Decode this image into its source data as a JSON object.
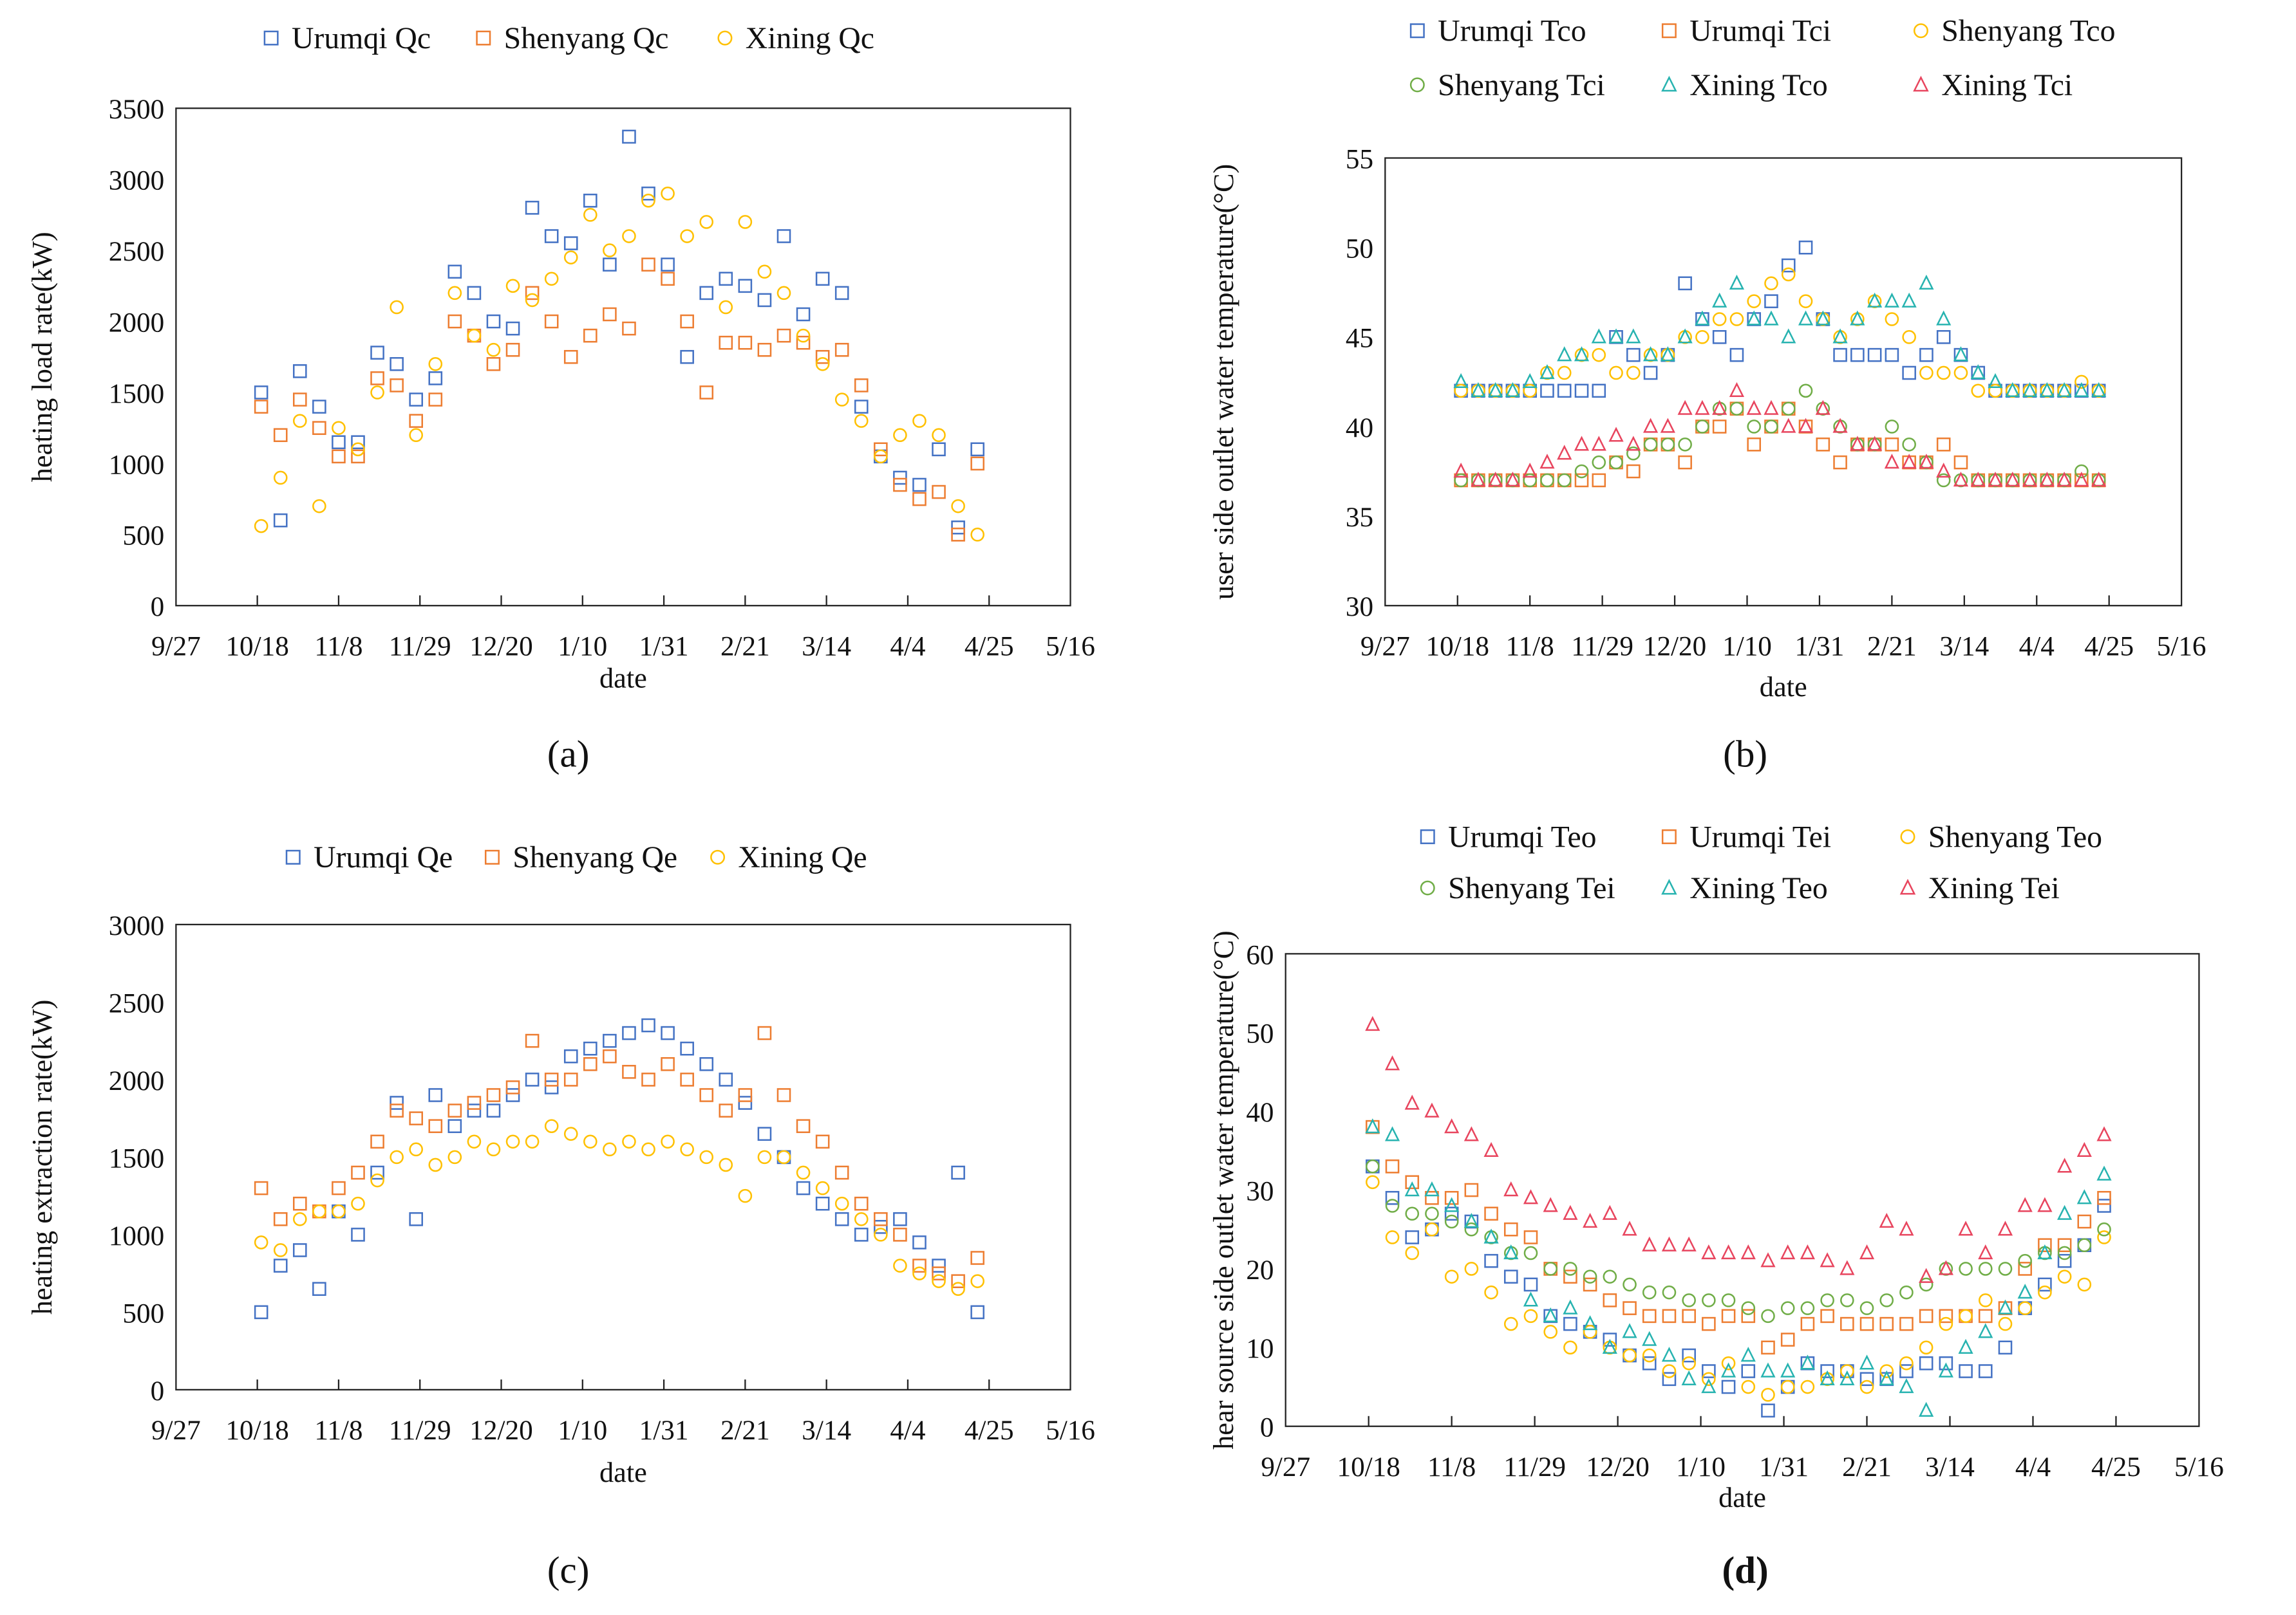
{
  "colors": {
    "blue": "#4472C4",
    "orange": "#ED7D31",
    "yellow": "#FFC000",
    "green": "#70AD47",
    "teal": "#27B3B0",
    "red": "#E8455E"
  },
  "chart_data": [
    {
      "panel_label": "(a)",
      "type": "scatter",
      "xlabel": "date",
      "ylabel": "heating load rate(kW)",
      "ylim": [
        0,
        3500
      ],
      "yticks": [
        0,
        500,
        1000,
        1500,
        2000,
        2500,
        3000,
        3500
      ],
      "xlim_days_from_9_27": [
        0,
        231
      ],
      "xtick_labels": [
        "9/27",
        "10/18",
        "11/8",
        "11/29",
        "12/20",
        "1/10",
        "1/31",
        "2/21",
        "3/14",
        "4/4",
        "4/25",
        "5/16"
      ],
      "x_days": [
        22,
        27,
        32,
        37,
        42,
        47,
        52,
        57,
        62,
        67,
        72,
        77,
        82,
        87,
        92,
        97,
        102,
        107,
        112,
        117,
        122,
        127,
        132,
        137,
        142,
        147,
        152,
        157,
        162,
        167,
        172,
        177,
        182,
        187,
        192,
        197,
        202,
        207
      ],
      "series": [
        {
          "name": "Urumqi Qc",
          "marker": "square",
          "color": "#4472C4",
          "values": [
            1500,
            600,
            1650,
            1400,
            1150,
            1150,
            1780,
            1700,
            1450,
            1600,
            2350,
            2200,
            2000,
            1950,
            2800,
            2600,
            2550,
            2850,
            2400,
            3300,
            2900,
            2400,
            1750,
            2200,
            2300,
            2250,
            2150,
            2600,
            2050,
            2300,
            2200,
            1400,
            1050,
            900,
            850,
            1100,
            550,
            1100
          ]
        },
        {
          "name": "Shenyang Qc",
          "marker": "square",
          "color": "#ED7D31",
          "values": [
            1400,
            1200,
            1450,
            1250,
            1050,
            1050,
            1600,
            1550,
            1300,
            1450,
            2000,
            1900,
            1700,
            1800,
            2200,
            2000,
            1750,
            1900,
            2050,
            1950,
            2400,
            2300,
            2000,
            1500,
            1850,
            1850,
            1800,
            1900,
            1850,
            1750,
            1800,
            1550,
            1100,
            850,
            750,
            800,
            500,
            1000
          ]
        },
        {
          "name": "Xining Qc",
          "marker": "circle",
          "color": "#FFC000",
          "values": [
            560,
            900,
            1300,
            700,
            1250,
            1100,
            1500,
            2100,
            1200,
            1700,
            2200,
            1900,
            1800,
            2250,
            2150,
            2300,
            2450,
            2750,
            2500,
            2600,
            2850,
            2900,
            2600,
            2700,
            2100,
            2700,
            2350,
            2200,
            1900,
            1700,
            1450,
            1300,
            1050,
            1200,
            1300,
            1200,
            700,
            500
          ]
        }
      ]
    },
    {
      "panel_label": "(b)",
      "type": "scatter",
      "xlabel": "date",
      "ylabel": "user side outlet water temperature(°C)",
      "ylim": [
        30,
        55
      ],
      "yticks": [
        30,
        35,
        40,
        45,
        50,
        55
      ],
      "xlim_days_from_9_27": [
        0,
        231
      ],
      "xtick_labels": [
        "9/27",
        "10/18",
        "11/8",
        "11/29",
        "12/20",
        "1/10",
        "1/31",
        "2/21",
        "3/14",
        "4/4",
        "4/25",
        "5/16"
      ],
      "x_days": [
        22,
        27,
        32,
        37,
        42,
        47,
        52,
        57,
        62,
        67,
        72,
        77,
        82,
        87,
        92,
        97,
        102,
        107,
        112,
        117,
        122,
        127,
        132,
        137,
        142,
        147,
        152,
        157,
        162,
        167,
        172,
        177,
        182,
        187,
        192,
        197,
        202,
        207
      ],
      "series": [
        {
          "name": "Urumqi Tco",
          "marker": "square",
          "color": "#4472C4",
          "values": [
            42,
            42,
            42,
            42,
            42,
            42,
            42,
            42,
            42,
            45,
            44,
            43,
            44,
            48,
            46,
            45,
            44,
            46,
            47,
            49,
            50,
            46,
            44,
            44,
            44,
            44,
            43,
            44,
            45,
            44,
            43,
            42,
            42,
            42,
            42,
            42,
            42,
            42
          ]
        },
        {
          "name": "Urumqi Tci",
          "marker": "square",
          "color": "#ED7D31",
          "values": [
            37,
            37,
            37,
            37,
            37,
            37,
            37,
            37,
            37,
            38,
            37.5,
            39,
            39,
            38,
            40,
            40,
            41,
            39,
            40,
            41,
            40,
            39,
            38,
            39,
            39,
            39,
            38,
            38,
            39,
            38,
            37,
            37,
            37,
            37,
            37,
            37,
            37,
            37
          ]
        },
        {
          "name": "Shenyang Tco",
          "marker": "circle",
          "color": "#FFC000",
          "values": [
            42,
            42,
            42,
            42,
            42,
            43,
            43,
            44,
            44,
            43,
            43,
            44,
            44,
            45,
            45,
            46,
            46,
            47,
            48,
            48.5,
            47,
            46,
            45,
            46,
            47,
            46,
            45,
            43,
            43,
            43,
            42,
            42,
            42,
            42,
            42,
            42,
            42.5,
            42
          ]
        },
        {
          "name": "Shenyang Tci",
          "marker": "circle",
          "color": "#70AD47",
          "values": [
            37,
            37,
            37,
            37,
            37,
            37,
            37,
            37.5,
            38,
            38,
            38.5,
            39,
            39,
            39,
            40,
            41,
            41,
            40,
            40,
            41,
            42,
            41,
            40,
            39,
            39,
            40,
            39,
            38,
            37,
            37,
            37,
            37,
            37,
            37,
            37,
            37,
            37.5,
            37
          ]
        },
        {
          "name": "Xining Tco",
          "marker": "triangle",
          "color": "#27B3B0",
          "values": [
            42.5,
            42,
            42,
            42,
            42.5,
            43,
            44,
            44,
            45,
            45,
            45,
            44,
            44,
            45,
            46,
            47,
            48,
            46,
            46,
            45,
            46,
            46,
            45,
            46,
            47,
            47,
            47,
            48,
            46,
            44,
            43,
            42.5,
            42,
            42,
            42,
            42,
            42,
            42
          ]
        },
        {
          "name": "Xining Tci",
          "marker": "triangle",
          "color": "#E8455E",
          "values": [
            37.5,
            37,
            37,
            37,
            37.5,
            38,
            38.5,
            39,
            39,
            39.5,
            39,
            40,
            40,
            41,
            41,
            41,
            42,
            41,
            41,
            40,
            40,
            41,
            40,
            39,
            39,
            38,
            38,
            38,
            37.5,
            37,
            37,
            37,
            37,
            37,
            37,
            37,
            37,
            37
          ]
        }
      ]
    },
    {
      "panel_label": "(c)",
      "type": "scatter",
      "xlabel": "date",
      "ylabel": "heating extraction rate(kW)",
      "ylim": [
        0,
        3000
      ],
      "yticks": [
        0,
        500,
        1000,
        1500,
        2000,
        2500,
        3000
      ],
      "xlim_days_from_9_27": [
        0,
        231
      ],
      "xtick_labels": [
        "9/27",
        "10/18",
        "11/8",
        "11/29",
        "12/20",
        "1/10",
        "1/31",
        "2/21",
        "3/14",
        "4/4",
        "4/25",
        "5/16"
      ],
      "x_days": [
        22,
        27,
        32,
        37,
        42,
        47,
        52,
        57,
        62,
        67,
        72,
        77,
        82,
        87,
        92,
        97,
        102,
        107,
        112,
        117,
        122,
        127,
        132,
        137,
        142,
        147,
        152,
        157,
        162,
        167,
        172,
        177,
        182,
        187,
        192,
        197,
        202,
        207
      ],
      "series": [
        {
          "name": "Urumqi Qe",
          "marker": "square",
          "color": "#4472C4",
          "values": [
            500,
            800,
            900,
            650,
            1150,
            1000,
            1400,
            1850,
            1100,
            1900,
            1700,
            1800,
            1800,
            1900,
            2000,
            1950,
            2150,
            2200,
            2250,
            2300,
            2350,
            2300,
            2200,
            2100,
            2000,
            1850,
            1650,
            1500,
            1300,
            1200,
            1100,
            1000,
            1050,
            1100,
            950,
            800,
            1400,
            500
          ]
        },
        {
          "name": "Shenyang Qe",
          "marker": "square",
          "color": "#ED7D31",
          "values": [
            1300,
            1100,
            1200,
            1150,
            1300,
            1400,
            1600,
            1800,
            1750,
            1700,
            1800,
            1850,
            1900,
            1950,
            2250,
            2000,
            2000,
            2100,
            2150,
            2050,
            2000,
            2100,
            2000,
            1900,
            1800,
            1900,
            2300,
            1900,
            1700,
            1600,
            1400,
            1200,
            1100,
            1000,
            800,
            750,
            700,
            850
          ]
        },
        {
          "name": "Xining Qe",
          "marker": "circle",
          "color": "#FFC000",
          "values": [
            950,
            900,
            1100,
            1150,
            1150,
            1200,
            1350,
            1500,
            1550,
            1450,
            1500,
            1600,
            1550,
            1600,
            1600,
            1700,
            1650,
            1600,
            1550,
            1600,
            1550,
            1600,
            1550,
            1500,
            1450,
            1250,
            1500,
            1500,
            1400,
            1300,
            1200,
            1100,
            1000,
            800,
            750,
            700,
            650,
            700
          ]
        }
      ]
    },
    {
      "panel_label": "(d)",
      "type": "scatter",
      "xlabel": "date",
      "ylabel": "hear source side outlet water temperature(°C)",
      "ylim": [
        0,
        60
      ],
      "yticks": [
        0,
        10,
        20,
        30,
        40,
        50,
        60
      ],
      "xlim_days_from_9_27": [
        0,
        231
      ],
      "xtick_labels": [
        "9/27",
        "10/18",
        "11/8",
        "11/29",
        "12/20",
        "1/10",
        "1/31",
        "2/21",
        "3/14",
        "4/4",
        "4/25",
        "5/16"
      ],
      "x_days": [
        22,
        27,
        32,
        37,
        42,
        47,
        52,
        57,
        62,
        67,
        72,
        77,
        82,
        87,
        92,
        97,
        102,
        107,
        112,
        117,
        122,
        127,
        132,
        137,
        142,
        147,
        152,
        157,
        162,
        167,
        172,
        177,
        182,
        187,
        192,
        197,
        202,
        207
      ],
      "series": [
        {
          "name": "Urumqi Teo",
          "marker": "square",
          "color": "#4472C4",
          "values": [
            33,
            29,
            24,
            25,
            27,
            26,
            21,
            19,
            18,
            14,
            13,
            12,
            11,
            9,
            8,
            6,
            9,
            7,
            5,
            7,
            2,
            5,
            8,
            7,
            7,
            6,
            6,
            7,
            8,
            8,
            7,
            7,
            10,
            15,
            18,
            21,
            23,
            28
          ]
        },
        {
          "name": "Urumqi Tei",
          "marker": "square",
          "color": "#ED7D31",
          "values": [
            38,
            33,
            31,
            29,
            29,
            30,
            27,
            25,
            24,
            20,
            19,
            18,
            16,
            15,
            14,
            14,
            14,
            13,
            14,
            14,
            10,
            11,
            13,
            14,
            13,
            13,
            13,
            13,
            14,
            14,
            14,
            14,
            15,
            20,
            23,
            23,
            26,
            29
          ]
        },
        {
          "name": "Shenyang Teo",
          "marker": "circle",
          "color": "#FFC000",
          "values": [
            31,
            24,
            22,
            25,
            19,
            20,
            17,
            13,
            14,
            12,
            10,
            12,
            10,
            9,
            9,
            7,
            8,
            6,
            8,
            5,
            4,
            5,
            5,
            6,
            7,
            5,
            7,
            8,
            10,
            13,
            14,
            16,
            13,
            15,
            17,
            19,
            18,
            24
          ]
        },
        {
          "name": "Shenyang Tei",
          "marker": "circle",
          "color": "#70AD47",
          "values": [
            33,
            28,
            27,
            27,
            26,
            25,
            24,
            22,
            22,
            20,
            20,
            19,
            19,
            18,
            17,
            17,
            16,
            16,
            16,
            15,
            14,
            15,
            15,
            16,
            16,
            15,
            16,
            17,
            18,
            20,
            20,
            20,
            20,
            21,
            22,
            22,
            23,
            25
          ]
        },
        {
          "name": "Xining Teo",
          "marker": "triangle",
          "color": "#27B3B0",
          "values": [
            38,
            37,
            30,
            30,
            28,
            26,
            24,
            22,
            16,
            14,
            15,
            13,
            10,
            12,
            11,
            9,
            6,
            5,
            7,
            9,
            7,
            7,
            8,
            6,
            6,
            8,
            6,
            5,
            2,
            7,
            10,
            12,
            15,
            17,
            22,
            27,
            29,
            32
          ]
        },
        {
          "name": "Xining Tei",
          "marker": "triangle",
          "color": "#E8455E",
          "values": [
            51,
            46,
            41,
            40,
            38,
            37,
            35,
            30,
            29,
            28,
            27,
            26,
            27,
            25,
            23,
            23,
            23,
            22,
            22,
            22,
            21,
            22,
            22,
            21,
            20,
            22,
            26,
            25,
            19,
            20,
            25,
            22,
            25,
            28,
            28,
            33,
            35,
            37
          ]
        }
      ]
    }
  ]
}
